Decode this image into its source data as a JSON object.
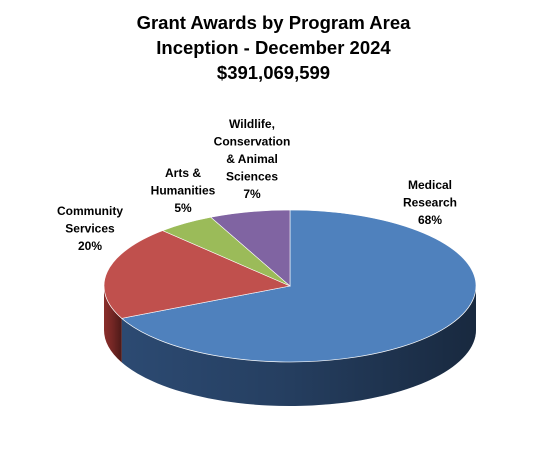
{
  "header": {
    "title": "Grant Awards by Program Area",
    "subtitle": "Inception - December 2024",
    "total": "$391,069,599"
  },
  "chart_data": {
    "type": "pie",
    "title": "Grant Awards by Program Area",
    "subtitle": "Inception - December 2024",
    "total_label": "$391,069,599",
    "style": "3d",
    "series": [
      {
        "name": "",
        "values": [
          68,
          20,
          5,
          7
        ],
        "unit": "%",
        "slices": [
          {
            "category": "Medical Research",
            "value": 68,
            "label_lines": [
              "Medical",
              "Research",
              "68%"
            ],
            "color": "#4f81bd",
            "side_color": "#2c4a72"
          },
          {
            "category": "Community Services",
            "value": 20,
            "label_lines": [
              "Community",
              "Services",
              "20%"
            ],
            "color": "#c0504d",
            "side_color": "#8a2e2b"
          },
          {
            "category": "Arts & Humanities",
            "value": 5,
            "label_lines": [
              "Arts &",
              "Humanities",
              "5%"
            ],
            "color": "#9bbb59",
            "side_color": "#62792f"
          },
          {
            "category": "Wildlife, Conservation & Animal Sciences",
            "value": 7,
            "label_lines": [
              "Wildlife,",
              "Conservation",
              "& Animal",
              "Sciences",
              "7%"
            ],
            "color": "#8064a2",
            "side_color": "#503d68"
          }
        ]
      }
    ],
    "legend": "none"
  }
}
